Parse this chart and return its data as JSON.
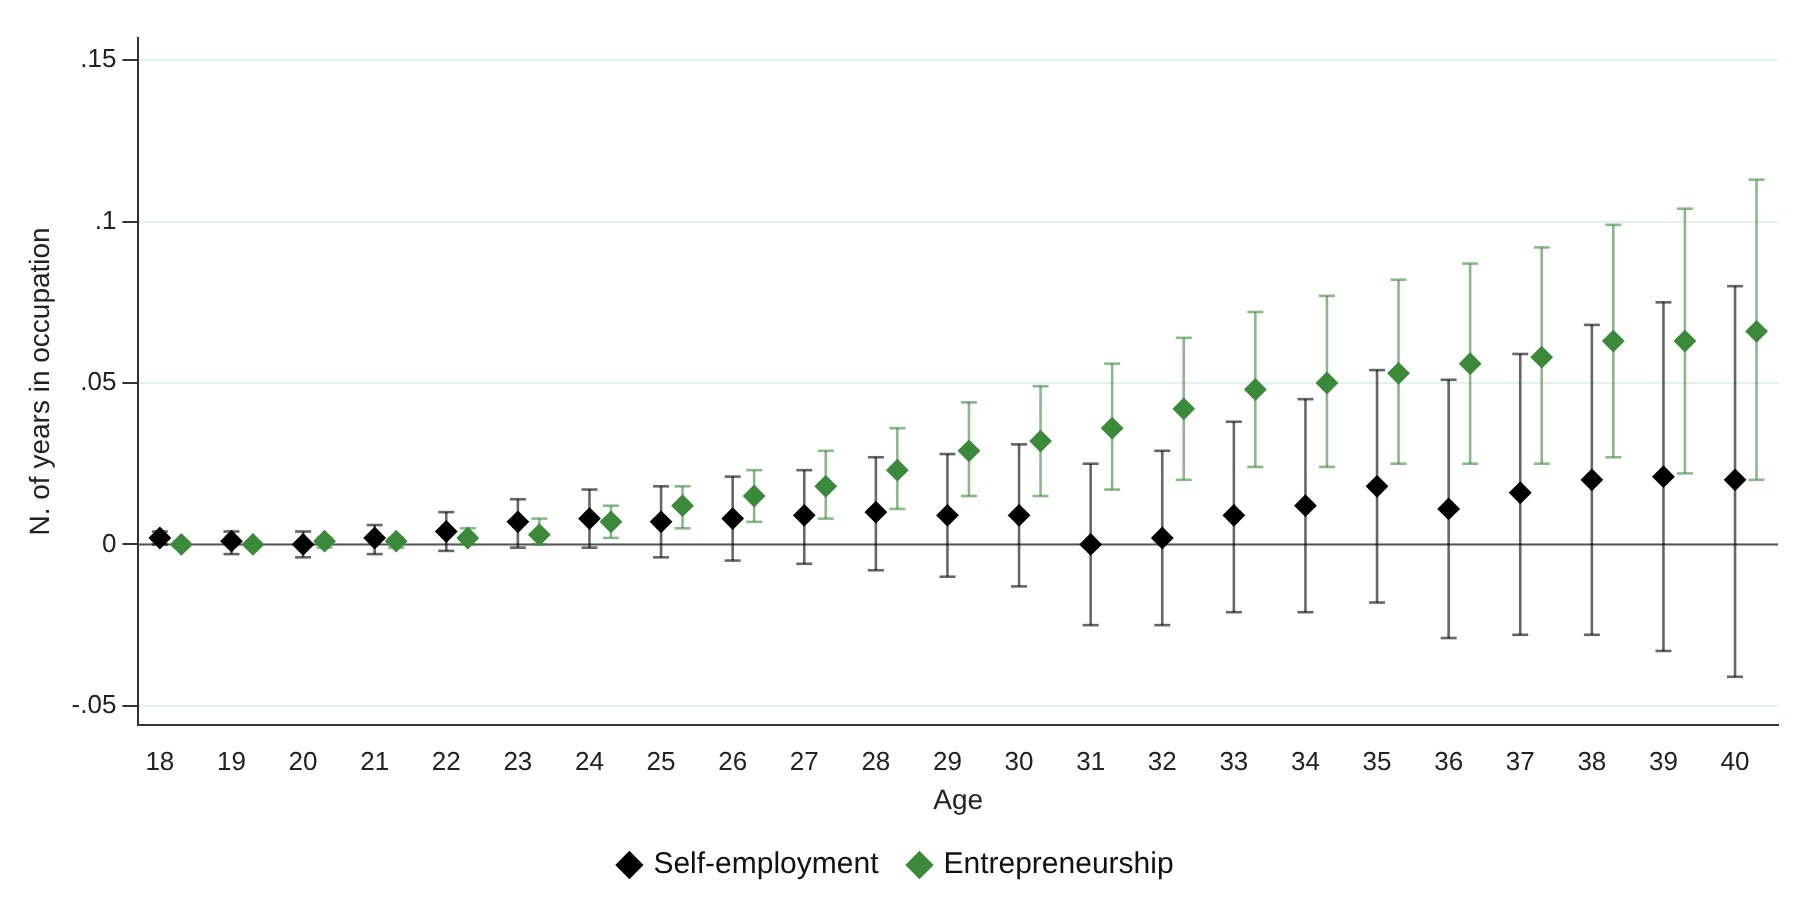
{
  "chart_data": {
    "type": "scatter",
    "xlabel": "Age",
    "ylabel": "N. of years in occupation",
    "xlim": [
      17.7,
      40.6
    ],
    "xticks": [
      18,
      19,
      20,
      21,
      22,
      23,
      24,
      25,
      26,
      27,
      28,
      29,
      30,
      31,
      32,
      33,
      34,
      35,
      36,
      37,
      38,
      39,
      40
    ],
    "ylim": [
      -0.056,
      0.157
    ],
    "yticks": [
      {
        "value": -0.05,
        "label": "-.05"
      },
      {
        "value": 0,
        "label": "0"
      },
      {
        "value": 0.05,
        "label": ".05"
      },
      {
        "value": 0.1,
        "label": ".1"
      },
      {
        "value": 0.15,
        "label": ".15"
      }
    ],
    "grid": "y",
    "legend": "bottom",
    "marker": "diamond",
    "ref_lines": [
      {
        "axis": "y",
        "value": 0,
        "color": "#555555"
      }
    ],
    "series": [
      {
        "name": "Self-employment",
        "color": "#000000",
        "x": [
          18,
          19,
          20,
          21,
          22,
          23,
          24,
          25,
          26,
          27,
          28,
          29,
          30,
          31,
          32,
          33,
          34,
          35,
          36,
          37,
          38,
          39,
          40
        ],
        "values": [
          0.002,
          0.001,
          0.0,
          0.002,
          0.004,
          0.007,
          0.008,
          0.007,
          0.008,
          0.009,
          0.01,
          0.009,
          0.009,
          0.0,
          0.002,
          0.009,
          0.012,
          0.018,
          0.011,
          0.016,
          0.02,
          0.021,
          0.02
        ],
        "errors": [
          [
            0.0,
            0.004
          ],
          [
            -0.003,
            0.004
          ],
          [
            -0.004,
            0.004
          ],
          [
            -0.003,
            0.006
          ],
          [
            -0.002,
            0.01
          ],
          [
            -0.001,
            0.014
          ],
          [
            -0.001,
            0.017
          ],
          [
            -0.004,
            0.018
          ],
          [
            -0.005,
            0.021
          ],
          [
            -0.006,
            0.023
          ],
          [
            -0.008,
            0.027
          ],
          [
            -0.01,
            0.028
          ],
          [
            -0.013,
            0.031
          ],
          [
            -0.025,
            0.025
          ],
          [
            -0.025,
            0.029
          ],
          [
            -0.021,
            0.038
          ],
          [
            -0.021,
            0.045
          ],
          [
            -0.018,
            0.054
          ],
          [
            -0.029,
            0.051
          ],
          [
            -0.028,
            0.059
          ],
          [
            -0.028,
            0.068
          ],
          [
            -0.033,
            0.075
          ],
          [
            -0.041,
            0.08
          ]
        ]
      },
      {
        "name": "Entrepreneurship",
        "color": "#3a8a3a",
        "x": [
          18.3,
          19.3,
          20.3,
          21.3,
          22.3,
          23.3,
          24.3,
          25.3,
          26.3,
          27.3,
          28.3,
          29.3,
          30.3,
          31.3,
          32.3,
          33.3,
          34.3,
          35.3,
          36.3,
          37.3,
          38.3,
          39.3,
          40.3
        ],
        "values": [
          0.0,
          0.0,
          0.001,
          0.001,
          0.002,
          0.003,
          0.007,
          0.012,
          0.015,
          0.018,
          0.023,
          0.029,
          0.032,
          0.036,
          0.042,
          0.048,
          0.05,
          0.053,
          0.056,
          0.058,
          0.063,
          0.063,
          0.066
        ],
        "errors": [
          [
            -0.001,
            0.001
          ],
          [
            -0.001,
            0.001
          ],
          [
            -0.001,
            0.002
          ],
          [
            -0.001,
            0.002
          ],
          [
            0.0,
            0.005
          ],
          [
            0.0,
            0.008
          ],
          [
            0.002,
            0.012
          ],
          [
            0.005,
            0.018
          ],
          [
            0.007,
            0.023
          ],
          [
            0.008,
            0.029
          ],
          [
            0.011,
            0.036
          ],
          [
            0.015,
            0.044
          ],
          [
            0.015,
            0.049
          ],
          [
            0.017,
            0.056
          ],
          [
            0.02,
            0.064
          ],
          [
            0.024,
            0.072
          ],
          [
            0.024,
            0.077
          ],
          [
            0.025,
            0.082
          ],
          [
            0.025,
            0.087
          ],
          [
            0.025,
            0.092
          ],
          [
            0.027,
            0.099
          ],
          [
            0.022,
            0.104
          ],
          [
            0.02,
            0.113
          ]
        ]
      }
    ]
  }
}
